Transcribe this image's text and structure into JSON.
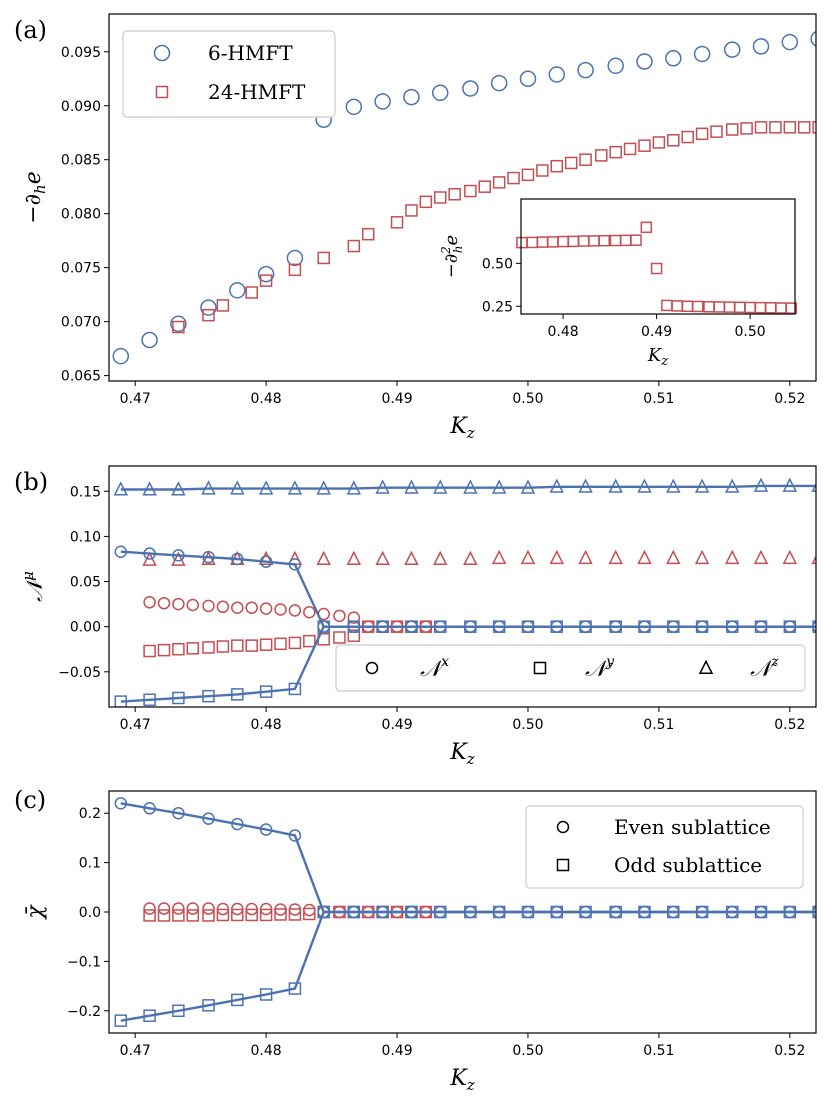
{
  "chart_data": [
    {
      "panel": "(a)",
      "type": "scatter",
      "xlabel": "K_z",
      "ylabel": "−∂_h e",
      "xlim": [
        0.468,
        0.522
      ],
      "ylim": [
        0.0645,
        0.0985
      ],
      "xticks": [
        "0.47",
        "0.48",
        "0.49",
        "0.50",
        "0.51",
        "0.52"
      ],
      "yticks": [
        "0.065",
        "0.070",
        "0.075",
        "0.080",
        "0.085",
        "0.090",
        "0.095"
      ],
      "legend": {
        "position": "top-left",
        "entries": [
          "6-HMFT",
          "24-HMFT"
        ]
      },
      "series": [
        {
          "name": "6-HMFT",
          "marker": "circle",
          "color": "#4c72b0",
          "x": [
            0.4689,
            0.4711,
            0.4733,
            0.4756,
            0.4778,
            0.48,
            0.4822,
            0.4844,
            0.4867,
            0.4889,
            0.4911,
            0.4933,
            0.4956,
            0.4978,
            0.5,
            0.5022,
            0.5044,
            0.5067,
            0.5089,
            0.5111,
            0.5133,
            0.5156,
            0.5178,
            0.52,
            0.5222
          ],
          "y": [
            0.0668,
            0.0683,
            0.0698,
            0.0713,
            0.0729,
            0.0744,
            0.0759,
            0.0887,
            0.0899,
            0.0904,
            0.0908,
            0.0912,
            0.0916,
            0.0921,
            0.0925,
            0.0929,
            0.0933,
            0.0937,
            0.0941,
            0.0944,
            0.0948,
            0.0952,
            0.0955,
            0.0959,
            0.0962
          ]
        },
        {
          "name": "24-HMFT",
          "marker": "square",
          "color": "#c44e52",
          "x": [
            0.4733,
            0.4744,
            0.4756,
            0.4767,
            0.4778,
            0.4789,
            0.48,
            0.4811,
            0.4822,
            0.4833,
            0.4844,
            0.4856,
            0.4867,
            0.4878,
            0.4889,
            0.49,
            0.4911,
            0.4922,
            0.4933,
            0.4944,
            0.4956,
            0.4967,
            0.4978,
            0.4989,
            0.5,
            0.5011,
            0.5022,
            0.5033,
            0.5044,
            0.5056,
            0.5067,
            0.5078,
            0.5089,
            0.51,
            0.5111,
            0.5122,
            0.5133,
            0.5144,
            0.5156,
            0.5167,
            0.5178,
            0.5189,
            0.52,
            0.5211,
            0.5222
          ],
          "y": [
            0.0695,
            0.07,
            0.0705,
            0.0711,
            0.0716,
            0.0722,
            0.0727,
            0.0732,
            0.0738,
            0.0743,
            0.0748,
            0.0754,
            0.0759,
            0.0765,
            0.077,
            0.0775,
            0.0781,
            0.0786,
            0.0791,
            0.0797,
            0.0802,
            0.0807,
            0.0812,
            0.0817,
            0.0821,
            0.0825,
            0.0829,
            0.0832,
            0.0836,
            0.0839,
            0.0843,
            0.0846,
            0.0849,
            0.0852,
            0.0854,
            0.0857,
            0.086,
            0.0862,
            0.0865,
            0.0867,
            0.087,
            0.0872,
            0.0875,
            0.0877,
            0.088
          ],
          "display_x": [
            0.4733,
            0.4756,
            0.4767,
            0.4789,
            0.48,
            0.4822,
            0.4844,
            0.4867,
            0.4878,
            0.49,
            0.4911,
            0.4922,
            0.4933,
            0.4944,
            0.4956,
            0.4967,
            0.4978,
            0.4989,
            0.5,
            0.5011,
            0.5022,
            0.5033,
            0.5044,
            0.5056,
            0.5067,
            0.5078,
            0.5089,
            0.51,
            0.5111,
            0.5122,
            0.5133,
            0.5144,
            0.5156,
            0.5167,
            0.5178,
            0.5189,
            0.52,
            0.5211,
            0.5222
          ],
          "display_y": [
            0.0695,
            0.0706,
            0.0715,
            0.0727,
            0.0738,
            0.0748,
            0.0759,
            0.077,
            0.0781,
            0.0792,
            0.0803,
            0.0811,
            0.0815,
            0.0818,
            0.0821,
            0.0825,
            0.0829,
            0.0833,
            0.0836,
            0.084,
            0.0844,
            0.0847,
            0.085,
            0.0854,
            0.0857,
            0.086,
            0.0863,
            0.0866,
            0.0868,
            0.0871,
            0.0874,
            0.0876,
            0.0878,
            0.0879,
            0.088,
            0.088,
            0.088,
            0.088,
            0.088
          ]
        }
      ],
      "inset": {
        "type": "scatter",
        "xlabel": "K_z",
        "ylabel": "−∂²_h e",
        "xlim": [
          0.4755,
          0.5048
        ],
        "ylim": [
          0.205,
          0.875
        ],
        "xticks": [
          "0.48",
          "0.49",
          "0.50"
        ],
        "yticks": [
          "0.25",
          "0.50"
        ],
        "series": [
          {
            "name": "24-HMFT",
            "marker": "square",
            "color": "#c44e52",
            "x": [
              0.4756,
              0.4767,
              0.4778,
              0.4789,
              0.48,
              0.4811,
              0.4822,
              0.4833,
              0.4844,
              0.4856,
              0.4867,
              0.4878,
              0.4889,
              0.49,
              0.4911,
              0.4922,
              0.4933,
              0.4944,
              0.4956,
              0.4967,
              0.4978,
              0.4989,
              0.5,
              0.5011,
              0.5022,
              0.5033,
              0.5044
            ],
            "y": [
              0.621,
              0.622,
              0.624,
              0.625,
              0.627,
              0.628,
              0.63,
              0.631,
              0.632,
              0.633,
              0.634,
              0.635,
              0.71,
              0.47,
              0.255,
              0.252,
              0.25,
              0.249,
              0.247,
              0.246,
              0.245,
              0.244,
              0.243,
              0.242,
              0.241,
              0.24,
              0.239
            ]
          }
        ]
      }
    },
    {
      "panel": "(b)",
      "type": "line",
      "xlabel": "K_z",
      "ylabel": "𝒩^μ",
      "xlim": [
        0.468,
        0.522
      ],
      "ylim": [
        -0.089,
        0.178
      ],
      "xticks": [
        "0.47",
        "0.48",
        "0.49",
        "0.50",
        "0.51",
        "0.52"
      ],
      "yticks": [
        "−0.05",
        "0.00",
        "0.05",
        "0.10",
        "0.15"
      ],
      "legend": {
        "position": "lower-right",
        "entries": [
          "𝒩^x",
          "𝒩^y",
          "𝒩^z"
        ]
      },
      "x": [
        0.4689,
        0.4711,
        0.4733,
        0.4756,
        0.4778,
        0.48,
        0.4822,
        0.4844,
        0.4867,
        0.4889,
        0.4911,
        0.4933,
        0.4956,
        0.4978,
        0.5,
        0.5022,
        0.5044,
        0.5067,
        0.5089,
        0.5111,
        0.5133,
        0.5156,
        0.5178,
        0.52,
        0.5222
      ],
      "series": [
        {
          "name": "𝒩^x (6-HMFT)",
          "marker": "circle",
          "color": "#4c72b0",
          "line": true,
          "y": [
            0.083,
            0.081,
            0.079,
            0.077,
            0.075,
            0.072,
            0.069,
            0.0,
            0.0,
            0.0,
            0.0,
            0.0,
            0.0,
            0.0,
            0.0,
            0.0,
            0.0,
            0.0,
            0.0,
            0.0,
            0.0,
            0.0,
            0.0,
            0.0,
            0.0
          ]
        },
        {
          "name": "𝒩^y (6-HMFT)",
          "marker": "square",
          "color": "#4c72b0",
          "line": true,
          "y": [
            -0.083,
            -0.081,
            -0.079,
            -0.077,
            -0.075,
            -0.072,
            -0.069,
            0.0,
            0.0,
            0.0,
            0.0,
            0.0,
            0.0,
            0.0,
            0.0,
            0.0,
            0.0,
            0.0,
            0.0,
            0.0,
            0.0,
            0.0,
            0.0,
            0.0,
            0.0
          ]
        },
        {
          "name": "𝒩^z (6-HMFT)",
          "marker": "triangle",
          "color": "#4c72b0",
          "line": true,
          "y": [
            0.152,
            0.152,
            0.152,
            0.153,
            0.153,
            0.153,
            0.153,
            0.153,
            0.153,
            0.154,
            0.154,
            0.154,
            0.154,
            0.154,
            0.154,
            0.155,
            0.155,
            0.155,
            0.155,
            0.155,
            0.155,
            0.155,
            0.156,
            0.156,
            0.156
          ]
        },
        {
          "name": "𝒩^x (24-HMFT)",
          "marker": "circle",
          "color": "#c44e52",
          "line": false,
          "x": [
            0.4711,
            0.4722,
            0.4733,
            0.4744,
            0.4756,
            0.4767,
            0.4778,
            0.4789,
            0.48,
            0.4811,
            0.4822,
            0.4833,
            0.4844,
            0.4856,
            0.4867,
            0.4878,
            0.4889,
            0.49,
            0.4911,
            0.4922
          ],
          "y": [
            0.027,
            0.026,
            0.025,
            0.024,
            0.023,
            0.022,
            0.021,
            0.021,
            0.02,
            0.019,
            0.018,
            0.016,
            0.014,
            0.012,
            0.01,
            0.0,
            0.0,
            0.0,
            0.0,
            0.0
          ]
        },
        {
          "name": "𝒩^y (24-HMFT)",
          "marker": "square",
          "color": "#c44e52",
          "line": false,
          "x": [
            0.4711,
            0.4722,
            0.4733,
            0.4744,
            0.4756,
            0.4767,
            0.4778,
            0.4789,
            0.48,
            0.4811,
            0.4822,
            0.4833,
            0.4844,
            0.4856,
            0.4867,
            0.4878,
            0.4889,
            0.49,
            0.4911,
            0.4922
          ],
          "y": [
            -0.027,
            -0.026,
            -0.025,
            -0.024,
            -0.023,
            -0.022,
            -0.021,
            -0.021,
            -0.02,
            -0.019,
            -0.018,
            -0.016,
            -0.014,
            -0.012,
            -0.01,
            0.0,
            0.0,
            0.0,
            0.0,
            0.0
          ]
        },
        {
          "name": "𝒩^z (24-HMFT)",
          "marker": "triangle",
          "color": "#c44e52",
          "line": false,
          "x": [
            0.4711,
            0.4733,
            0.4756,
            0.4778,
            0.48,
            0.4822,
            0.4844,
            0.4867,
            0.4889,
            0.4911,
            0.4933,
            0.4956,
            0.4978,
            0.5,
            0.5022,
            0.5044,
            0.5067,
            0.5089,
            0.5111,
            0.5133,
            0.5156,
            0.5178,
            0.52,
            0.5222
          ],
          "y": [
            0.074,
            0.074,
            0.075,
            0.075,
            0.075,
            0.075,
            0.075,
            0.075,
            0.075,
            0.075,
            0.075,
            0.075,
            0.076,
            0.076,
            0.076,
            0.076,
            0.076,
            0.076,
            0.076,
            0.076,
            0.076,
            0.076,
            0.076,
            0.076
          ]
        }
      ]
    },
    {
      "panel": "(c)",
      "type": "line",
      "xlabel": "K_z",
      "ylabel": "χ̄",
      "xlim": [
        0.468,
        0.522
      ],
      "ylim": [
        -0.245,
        0.245
      ],
      "xticks": [
        "0.47",
        "0.48",
        "0.49",
        "0.50",
        "0.51",
        "0.52"
      ],
      "yticks": [
        "−0.2",
        "−0.1",
        "0.0",
        "0.1",
        "0.2"
      ],
      "legend": {
        "position": "top-right",
        "entries": [
          "Even sublattice",
          "Odd sublattice"
        ]
      },
      "x": [
        0.4689,
        0.4711,
        0.4733,
        0.4756,
        0.4778,
        0.48,
        0.4822,
        0.4844,
        0.4867,
        0.4889,
        0.4911,
        0.4933,
        0.4956,
        0.4978,
        0.5,
        0.5022,
        0.5044,
        0.5067,
        0.5089,
        0.5111,
        0.5133,
        0.5156,
        0.5178,
        0.52,
        0.5222
      ],
      "series": [
        {
          "name": "Even sublattice (6-HMFT)",
          "marker": "circle",
          "color": "#4c72b0",
          "line": true,
          "y": [
            0.22,
            0.21,
            0.2,
            0.189,
            0.178,
            0.167,
            0.155,
            0.0,
            0.0,
            0.0,
            0.0,
            0.0,
            0.0,
            0.0,
            0.0,
            0.0,
            0.0,
            0.0,
            0.0,
            0.0,
            0.0,
            0.0,
            0.0,
            0.0,
            0.0
          ]
        },
        {
          "name": "Odd sublattice (6-HMFT)",
          "marker": "square",
          "color": "#4c72b0",
          "line": true,
          "y": [
            -0.22,
            -0.21,
            -0.2,
            -0.189,
            -0.178,
            -0.167,
            -0.155,
            0.0,
            0.0,
            0.0,
            0.0,
            0.0,
            0.0,
            0.0,
            0.0,
            0.0,
            0.0,
            0.0,
            0.0,
            0.0,
            0.0,
            0.0,
            0.0,
            0.0,
            0.0
          ]
        },
        {
          "name": "Even sublattice (24-HMFT)",
          "marker": "circle",
          "color": "#c44e52",
          "line": false,
          "x": [
            0.4711,
            0.4722,
            0.4733,
            0.4744,
            0.4756,
            0.4767,
            0.4778,
            0.4789,
            0.48,
            0.4811,
            0.4822,
            0.4833,
            0.4844,
            0.4856,
            0.4867,
            0.4878,
            0.4889,
            0.49,
            0.4911,
            0.4922
          ],
          "y": [
            0.007,
            0.007,
            0.007,
            0.007,
            0.007,
            0.006,
            0.006,
            0.006,
            0.006,
            0.005,
            0.005,
            0.004,
            0.0,
            0.0,
            0.0,
            0.0,
            0.0,
            0.0,
            0.0,
            0.0
          ]
        },
        {
          "name": "Odd sublattice (24-HMFT)",
          "marker": "square",
          "color": "#c44e52",
          "line": false,
          "x": [
            0.4711,
            0.4722,
            0.4733,
            0.4744,
            0.4756,
            0.4767,
            0.4778,
            0.4789,
            0.48,
            0.4811,
            0.4822,
            0.4833,
            0.4844,
            0.4856,
            0.4867,
            0.4878,
            0.4889,
            0.49,
            0.4911,
            0.4922
          ],
          "y": [
            -0.007,
            -0.007,
            -0.007,
            -0.007,
            -0.007,
            -0.006,
            -0.006,
            -0.006,
            -0.006,
            -0.005,
            -0.005,
            -0.004,
            0.0,
            0.0,
            0.0,
            0.0,
            0.0,
            0.0,
            0.0,
            0.0
          ]
        }
      ]
    }
  ],
  "colors": {
    "blue": "#4c72b0",
    "red": "#c44e52"
  }
}
